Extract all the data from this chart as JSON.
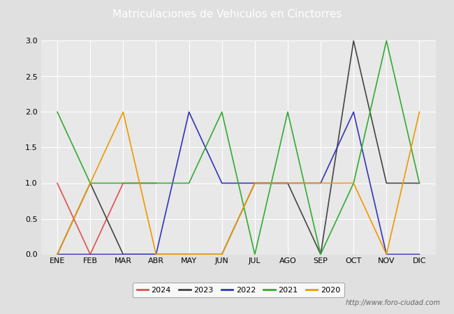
{
  "title": "Matriculaciones de Vehiculos en Cinctorres",
  "months": [
    "ENE",
    "FEB",
    "MAR",
    "ABR",
    "MAY",
    "JUN",
    "JUL",
    "AGO",
    "SEP",
    "OCT",
    "NOV",
    "DIC"
  ],
  "series": {
    "2024": {
      "values": [
        1,
        0,
        1,
        1,
        null,
        null,
        null,
        null,
        null,
        null,
        null,
        null
      ],
      "color": "#e05050",
      "linewidth": 1.2
    },
    "2023": {
      "values": [
        0,
        1,
        0,
        0,
        0,
        0,
        1,
        1,
        0,
        3,
        1,
        1
      ],
      "color": "#444444",
      "linewidth": 1.2
    },
    "2022": {
      "values": [
        0,
        0,
        0,
        0,
        2,
        1,
        1,
        1,
        1,
        2,
        0,
        0
      ],
      "color": "#3333bb",
      "linewidth": 1.2
    },
    "2021": {
      "values": [
        2,
        1,
        1,
        1,
        1,
        2,
        0,
        2,
        0,
        1,
        3,
        1
      ],
      "color": "#33aa33",
      "linewidth": 1.2
    },
    "2020": {
      "values": [
        0,
        1,
        2,
        0,
        0,
        0,
        1,
        1,
        1,
        1,
        0,
        2
      ],
      "color": "#ee9900",
      "linewidth": 1.2
    }
  },
  "ylim": [
    0.0,
    3.0
  ],
  "yticks": [
    0.0,
    0.5,
    1.0,
    1.5,
    2.0,
    2.5,
    3.0
  ],
  "title_fontsize": 11,
  "tick_fontsize": 8,
  "legend_fontsize": 8,
  "bg_color": "#e0e0e0",
  "plot_bg_color": "#e8e8e8",
  "grid_color": "#ffffff",
  "title_bg_color": "#4472c4",
  "title_text_color": "#ffffff",
  "watermark": "http://www.foro-ciudad.com",
  "legend_years": [
    "2024",
    "2023",
    "2022",
    "2021",
    "2020"
  ]
}
